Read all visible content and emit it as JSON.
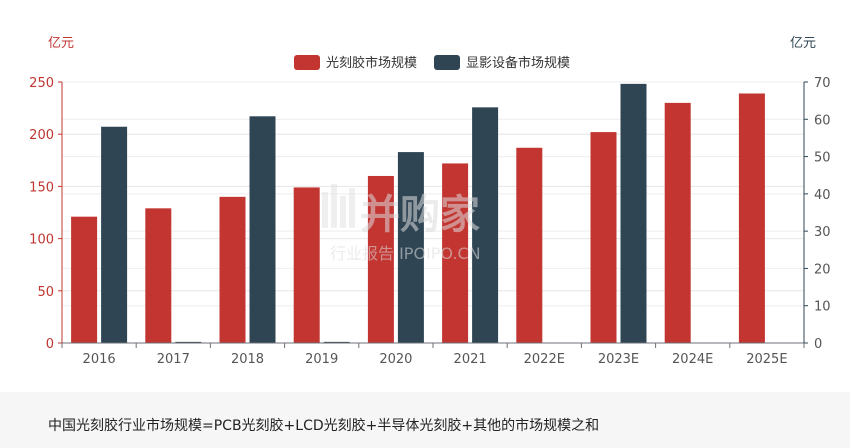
{
  "chart_data": {
    "type": "bar",
    "categories": [
      "2016",
      "2017",
      "2018",
      "2019",
      "2020",
      "2021",
      "2022E",
      "2023E",
      "2024E",
      "2025E"
    ],
    "series": [
      {
        "name": "光刻胶市场规模",
        "axis": "left",
        "color": "#c23531",
        "values": [
          121,
          129,
          140,
          149,
          160,
          172,
          187,
          202,
          230,
          239
        ]
      },
      {
        "name": "显影设备市场规模",
        "axis": "right",
        "color": "#2f4554",
        "values": [
          58,
          0.3,
          60.8,
          0.3,
          51.2,
          63.2,
          null,
          69.5,
          null,
          null
        ]
      }
    ],
    "y_left": {
      "unit": "亿元",
      "range": [
        0,
        250
      ],
      "ticks": [
        0,
        50,
        100,
        150,
        200,
        250
      ],
      "color": "#c23531"
    },
    "y_right": {
      "unit": "亿元",
      "range": [
        0,
        70
      ],
      "ticks": [
        0,
        10,
        20,
        30,
        40,
        50,
        60,
        70
      ],
      "color": "#2f4554"
    },
    "grid": true,
    "legend_position": "top-center"
  },
  "watermark": {
    "brand": "并购家",
    "tagline": "行业报告 IPOIPO.CN"
  },
  "footer_note": "中国光刻胶行业市场规模=PCB光刻胶+LCD光刻胶+半导体光刻胶+其他的市场规模之和"
}
